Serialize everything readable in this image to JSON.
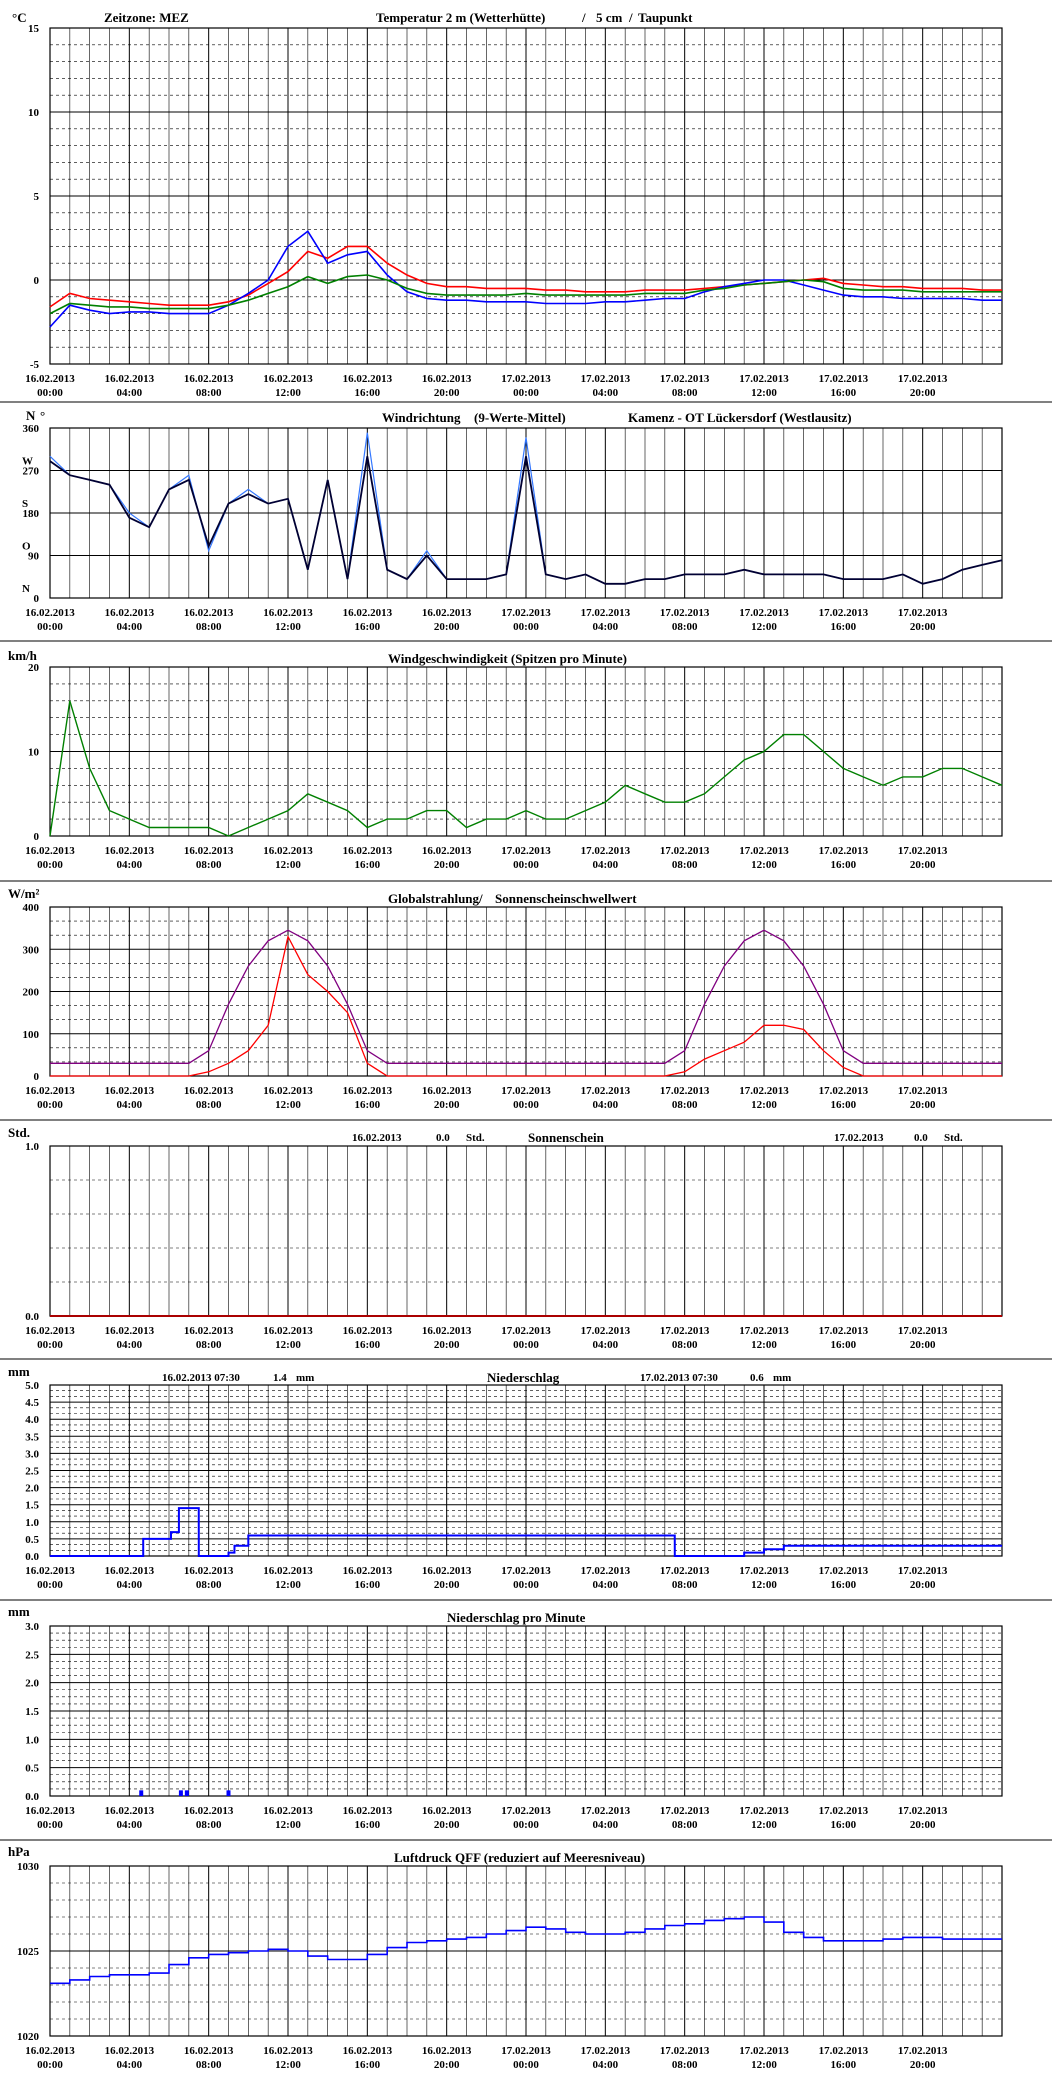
{
  "colors": {
    "temp": "#ff0000",
    "soil": "#0000ff",
    "dew": "#008000",
    "wind_dir": "#3377ff",
    "wind_dir_mean": "#000033",
    "wind_speed": "#008000",
    "radiation": "#ff0000",
    "threshold": "#800080",
    "precip": "#0000ff",
    "pressure": "#0000ff",
    "sun": "#aa0000"
  },
  "time_labels": [
    {
      "date": "16.02.2013",
      "time": "00:00"
    },
    {
      "date": "16.02.2013",
      "time": "04:00"
    },
    {
      "date": "16.02.2013",
      "time": "08:00"
    },
    {
      "date": "16.02.2013",
      "time": "12:00"
    },
    {
      "date": "16.02.2013",
      "time": "16:00"
    },
    {
      "date": "16.02.2013",
      "time": "20:00"
    },
    {
      "date": "17.02.2013",
      "time": "00:00"
    },
    {
      "date": "17.02.2013",
      "time": "04:00"
    },
    {
      "date": "17.02.2013",
      "time": "08:00"
    },
    {
      "date": "17.02.2013",
      "time": "12:00"
    },
    {
      "date": "17.02.2013",
      "time": "16:00"
    },
    {
      "date": "17.02.2013",
      "time": "20:00"
    }
  ],
  "chart_data": [
    {
      "type": "line",
      "title_parts": {
        "timezone": "Zeitzone: MEZ",
        "temp": "Temperatur 2 m (Wetterhütte)",
        "sep": "/",
        "soil": "5 cm",
        "slash": "/",
        "dew": "Taupunkt"
      },
      "ylabel": "°C",
      "ylim": [
        -5,
        15
      ],
      "yticks": [
        "15",
        "10",
        "5",
        "0",
        "-5"
      ],
      "x_hours": [
        0,
        1,
        2,
        3,
        4,
        5,
        6,
        7,
        8,
        9,
        10,
        11,
        12,
        13,
        14,
        15,
        16,
        17,
        18,
        19,
        20,
        21,
        22,
        23,
        24,
        25,
        26,
        27,
        28,
        29,
        30,
        31,
        32,
        33,
        34,
        35,
        36,
        37,
        38,
        39,
        40,
        41,
        42,
        43,
        44,
        45,
        46,
        47,
        48
      ],
      "series": [
        {
          "name": "Temperatur 2 m (Wetterhütte)",
          "values": [
            -1.6,
            -0.8,
            -1.1,
            -1.2,
            -1.3,
            -1.4,
            -1.5,
            -1.5,
            -1.5,
            -1.3,
            -0.9,
            -0.2,
            0.5,
            1.7,
            1.3,
            2.0,
            2.0,
            1.0,
            0.3,
            -0.2,
            -0.4,
            -0.4,
            -0.5,
            -0.5,
            -0.5,
            -0.6,
            -0.6,
            -0.7,
            -0.7,
            -0.7,
            -0.6,
            -0.6,
            -0.6,
            -0.5,
            -0.4,
            -0.3,
            -0.2,
            -0.1,
            0.0,
            0.1,
            -0.2,
            -0.3,
            -0.4,
            -0.4,
            -0.5,
            -0.5,
            -0.5,
            -0.6,
            -0.6
          ]
        },
        {
          "name": "5 cm",
          "values": [
            -2.8,
            -1.5,
            -1.8,
            -2.0,
            -1.9,
            -1.9,
            -2.0,
            -2.0,
            -2.0,
            -1.5,
            -0.8,
            0.0,
            2.0,
            2.9,
            1.0,
            1.5,
            1.7,
            0.3,
            -0.7,
            -1.1,
            -1.2,
            -1.2,
            -1.3,
            -1.3,
            -1.3,
            -1.4,
            -1.4,
            -1.4,
            -1.3,
            -1.3,
            -1.2,
            -1.1,
            -1.1,
            -0.7,
            -0.4,
            -0.2,
            0.0,
            0.0,
            -0.3,
            -0.6,
            -0.9,
            -1.0,
            -1.0,
            -1.1,
            -1.1,
            -1.1,
            -1.1,
            -1.2,
            -1.2
          ]
        },
        {
          "name": "Taupunkt",
          "values": [
            -2.0,
            -1.4,
            -1.5,
            -1.6,
            -1.6,
            -1.7,
            -1.7,
            -1.7,
            -1.7,
            -1.5,
            -1.2,
            -0.8,
            -0.4,
            0.2,
            -0.2,
            0.2,
            0.3,
            0.0,
            -0.5,
            -0.8,
            -0.9,
            -0.9,
            -0.9,
            -0.9,
            -0.8,
            -0.9,
            -0.9,
            -0.9,
            -0.9,
            -0.9,
            -0.8,
            -0.8,
            -0.8,
            -0.6,
            -0.5,
            -0.3,
            -0.2,
            -0.1,
            0.0,
            -0.1,
            -0.5,
            -0.6,
            -0.6,
            -0.6,
            -0.7,
            -0.7,
            -0.7,
            -0.7,
            -0.7
          ]
        }
      ]
    },
    {
      "type": "line",
      "title_parts": {
        "dir": "Windrichtung",
        "mean": "(9-Werte-Mittel)",
        "station": "Kamenz - OT Lückersdorf (Westlausitz)"
      },
      "ylim": [
        0,
        360
      ],
      "yticks": [
        "360",
        "270",
        "180",
        "90",
        "0"
      ],
      "compass": [
        "N",
        "W",
        "S",
        "O",
        "N"
      ],
      "x_hours": [
        0,
        1,
        2,
        3,
        4,
        5,
        6,
        7,
        8,
        9,
        10,
        11,
        12,
        13,
        14,
        15,
        16,
        17,
        18,
        19,
        20,
        21,
        22,
        23,
        24,
        25,
        26,
        27,
        28,
        29,
        30,
        31,
        32,
        33,
        34,
        35,
        36,
        37,
        38,
        39,
        40,
        41,
        42,
        43,
        44,
        45,
        46,
        47,
        48
      ],
      "series": [
        {
          "name": "Windrichtung",
          "values": [
            300,
            260,
            250,
            240,
            180,
            150,
            230,
            260,
            100,
            200,
            230,
            200,
            210,
            60,
            250,
            40,
            350,
            60,
            40,
            100,
            40,
            40,
            40,
            50,
            340,
            50,
            40,
            50,
            30,
            30,
            40,
            40,
            50,
            50,
            50,
            60,
            50,
            50,
            50,
            50,
            40,
            40,
            40,
            50,
            30,
            40,
            60,
            70,
            80
          ]
        },
        {
          "name": "9-Werte-Mittel",
          "values": [
            290,
            260,
            250,
            240,
            170,
            150,
            230,
            250,
            110,
            200,
            220,
            200,
            210,
            60,
            250,
            40,
            300,
            60,
            40,
            90,
            40,
            40,
            40,
            50,
            300,
            50,
            40,
            50,
            30,
            30,
            40,
            40,
            50,
            50,
            50,
            60,
            50,
            50,
            50,
            50,
            40,
            40,
            40,
            50,
            30,
            40,
            60,
            70,
            80
          ]
        }
      ]
    },
    {
      "type": "line",
      "title": "Windgeschwindigkeit (Spitzen pro Minute)",
      "ylabel": "km/h",
      "ylim": [
        0,
        20
      ],
      "yticks": [
        "20",
        "10",
        "0"
      ],
      "x_hours": [
        0,
        1,
        2,
        3,
        4,
        5,
        6,
        7,
        8,
        9,
        10,
        11,
        12,
        13,
        14,
        15,
        16,
        17,
        18,
        19,
        20,
        21,
        22,
        23,
        24,
        25,
        26,
        27,
        28,
        29,
        30,
        31,
        32,
        33,
        34,
        35,
        36,
        37,
        38,
        39,
        40,
        41,
        42,
        43,
        44,
        45,
        46,
        47,
        48
      ],
      "series": [
        {
          "name": "Windgeschwindigkeit",
          "values": [
            0,
            16,
            8,
            3,
            2,
            1,
            1,
            1,
            1,
            0,
            1,
            2,
            3,
            5,
            4,
            3,
            1,
            2,
            2,
            3,
            3,
            1,
            2,
            2,
            3,
            2,
            2,
            3,
            4,
            6,
            5,
            4,
            4,
            5,
            7,
            9,
            10,
            12,
            12,
            10,
            8,
            7,
            6,
            7,
            7,
            8,
            8,
            7,
            6
          ]
        }
      ]
    },
    {
      "type": "line",
      "title_parts": {
        "rad": "Globalstrahlung/",
        "thr": "Sonnenscheinschwellwert"
      },
      "ylabel": "W/m²",
      "ylim": [
        0,
        400
      ],
      "yticks": [
        "400",
        "300",
        "200",
        "100",
        "0"
      ],
      "x_hours": [
        0,
        1,
        2,
        3,
        4,
        5,
        6,
        7,
        8,
        9,
        10,
        11,
        12,
        13,
        14,
        15,
        16,
        17,
        18,
        19,
        20,
        21,
        22,
        23,
        24,
        25,
        26,
        27,
        28,
        29,
        30,
        31,
        32,
        33,
        34,
        35,
        36,
        37,
        38,
        39,
        40,
        41,
        42,
        43,
        44,
        45,
        46,
        47,
        48
      ],
      "series": [
        {
          "name": "Globalstrahlung",
          "values": [
            0,
            0,
            0,
            0,
            0,
            0,
            0,
            0,
            10,
            30,
            60,
            120,
            330,
            240,
            200,
            150,
            30,
            0,
            0,
            0,
            0,
            0,
            0,
            0,
            0,
            0,
            0,
            0,
            0,
            0,
            0,
            0,
            10,
            40,
            60,
            80,
            120,
            120,
            110,
            60,
            20,
            0,
            0,
            0,
            0,
            0,
            0,
            0,
            0
          ]
        },
        {
          "name": "Sonnenscheinschwellwert",
          "values": [
            30,
            30,
            30,
            30,
            30,
            30,
            30,
            30,
            60,
            170,
            260,
            320,
            345,
            320,
            260,
            170,
            60,
            30,
            30,
            30,
            30,
            30,
            30,
            30,
            30,
            30,
            30,
            30,
            30,
            30,
            30,
            30,
            60,
            170,
            260,
            320,
            345,
            320,
            260,
            170,
            60,
            30,
            30,
            30,
            30,
            30,
            30,
            30,
            30
          ]
        }
      ]
    },
    {
      "type": "bar",
      "title": "Sonnenschein",
      "ylabel": "Std.",
      "ylim": [
        0,
        1
      ],
      "yticks": [
        "1.0",
        "0.0"
      ],
      "day1": {
        "date": "16.02.2013",
        "value": "0.0",
        "unit": "Std."
      },
      "day2": {
        "date": "17.02.2013",
        "value": "0.0",
        "unit": "Std."
      }
    },
    {
      "type": "line",
      "title": "Niederschlag",
      "ylabel": "mm",
      "ylim": [
        0,
        5
      ],
      "yticks": [
        "5.0",
        "4.5",
        "4.0",
        "3.5",
        "3.0",
        "2.5",
        "2.0",
        "1.5",
        "1.0",
        "0.5",
        "0.0"
      ],
      "day1": {
        "date": "16.02.2013 07:30",
        "value": "1.4",
        "unit": "mm"
      },
      "day2": {
        "date": "17.02.2013 07:30",
        "value": "0.6",
        "unit": "mm"
      },
      "x_hours": [
        0,
        4.6,
        4.7,
        6.0,
        6.1,
        6.5,
        7.3,
        7.5,
        9.0,
        9.3,
        10.0,
        31.4,
        31.5,
        35.0,
        36.0,
        37.0,
        48.0
      ],
      "series": [
        {
          "name": "Niederschlag",
          "values": [
            0.0,
            0.0,
            0.5,
            0.5,
            0.7,
            1.4,
            1.4,
            0.0,
            0.1,
            0.3,
            0.6,
            0.6,
            0.0,
            0.1,
            0.2,
            0.3,
            0.3
          ]
        }
      ]
    },
    {
      "type": "bar",
      "title": "Niederschlag pro Minute",
      "ylabel": "mm",
      "ylim": [
        0,
        3
      ],
      "yticks": [
        "3.0",
        "2.5",
        "2.0",
        "1.5",
        "1.0",
        "0.5",
        "0.0"
      ],
      "x_hours": [
        4.6,
        6.6,
        6.9,
        9.0
      ],
      "values": [
        0.1,
        0.1,
        0.1,
        0.1
      ]
    },
    {
      "type": "line",
      "title": "Luftdruck QFF (reduziert auf Meeresniveau)",
      "ylabel": "hPa",
      "ylim": [
        1020,
        1030
      ],
      "yticks": [
        "1030",
        "1025",
        "1020"
      ],
      "x_hours": [
        0,
        1,
        2,
        3,
        4,
        5,
        6,
        7,
        8,
        9,
        10,
        11,
        12,
        13,
        14,
        15,
        16,
        17,
        18,
        19,
        20,
        21,
        22,
        23,
        24,
        25,
        26,
        27,
        28,
        29,
        30,
        31,
        32,
        33,
        34,
        35,
        36,
        37,
        38,
        39,
        40,
        41,
        42,
        43,
        44,
        45,
        46,
        47,
        48
      ],
      "series": [
        {
          "name": "Luftdruck QFF",
          "values": [
            1023.1,
            1023.3,
            1023.5,
            1023.6,
            1023.6,
            1023.7,
            1024.2,
            1024.6,
            1024.8,
            1024.9,
            1025.0,
            1025.1,
            1025.0,
            1024.7,
            1024.5,
            1024.5,
            1024.8,
            1025.2,
            1025.5,
            1025.6,
            1025.7,
            1025.8,
            1026.0,
            1026.2,
            1026.4,
            1026.3,
            1026.1,
            1026.0,
            1026.0,
            1026.1,
            1026.3,
            1026.5,
            1026.6,
            1026.8,
            1026.9,
            1027.0,
            1026.7,
            1026.1,
            1025.8,
            1025.6,
            1025.6,
            1025.6,
            1025.7,
            1025.8,
            1025.8,
            1025.7,
            1025.7,
            1025.7,
            1025.7
          ]
        }
      ]
    }
  ]
}
